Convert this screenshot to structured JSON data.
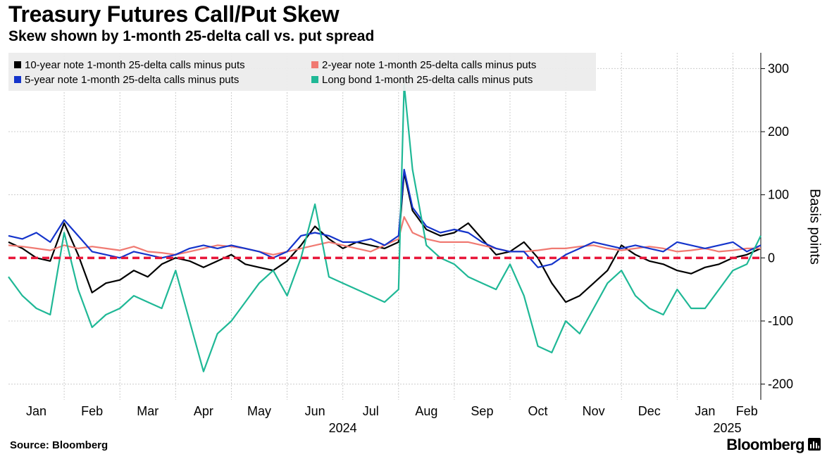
{
  "header": {
    "title": "Treasury Futures Call/Put Skew",
    "subtitle": "Skew shown by 1-month 25-delta call vs. put spread"
  },
  "footer": {
    "source": "Source: Bloomberg",
    "brand": "Bloomberg"
  },
  "chart_data": {
    "type": "line",
    "title": "Treasury Futures Call/Put Skew",
    "subtitle": "Skew shown by 1-month 25-delta call vs. put spread",
    "ylabel": "Basis points",
    "xlabel": "",
    "ylim": [
      -225,
      325
    ],
    "yticks": [
      -200,
      -100,
      0,
      100,
      200,
      300
    ],
    "ytick_labels": [
      "-200",
      "-100",
      "0",
      "100",
      "200",
      "300"
    ],
    "xlim": [
      0,
      13.5
    ],
    "x_unit": "months since start of January 2024",
    "xticks": [
      {
        "label": "Jan",
        "pos": 0.5
      },
      {
        "label": "Feb",
        "pos": 1.5
      },
      {
        "label": "Mar",
        "pos": 2.5
      },
      {
        "label": "Apr",
        "pos": 3.5
      },
      {
        "label": "May",
        "pos": 4.5
      },
      {
        "label": "Jun",
        "pos": 5.5
      },
      {
        "label": "Jul",
        "pos": 6.5
      },
      {
        "label": "Aug",
        "pos": 7.5
      },
      {
        "label": "Sep",
        "pos": 8.5
      },
      {
        "label": "Oct",
        "pos": 9.5
      },
      {
        "label": "Nov",
        "pos": 10.5
      },
      {
        "label": "Dec",
        "pos": 11.5
      },
      {
        "label": "Jan",
        "pos": 12.5
      },
      {
        "label": "Feb",
        "pos": 13.25
      }
    ],
    "year_labels": [
      {
        "label": "2024",
        "pos": 6.0
      },
      {
        "label": "2025",
        "pos": 12.9
      }
    ],
    "zero_line_color": "#e8173a",
    "grid": true,
    "legend_position": "top-left",
    "series": [
      {
        "name": "10-year note 1-month 25-delta calls minus puts",
        "color": "#000000",
        "x": [
          0,
          0.25,
          0.5,
          0.75,
          1.0,
          1.25,
          1.5,
          1.75,
          2.0,
          2.25,
          2.5,
          2.75,
          3.0,
          3.25,
          3.5,
          3.75,
          4.0,
          4.25,
          4.5,
          4.75,
          5.0,
          5.25,
          5.5,
          5.75,
          6.0,
          6.25,
          6.5,
          6.75,
          7.0,
          7.1,
          7.25,
          7.5,
          7.75,
          8.0,
          8.25,
          8.5,
          8.75,
          9.0,
          9.25,
          9.5,
          9.75,
          10.0,
          10.25,
          10.5,
          10.75,
          11.0,
          11.25,
          11.5,
          11.75,
          12.0,
          12.25,
          12.5,
          12.75,
          13.0,
          13.25,
          13.5
        ],
        "y": [
          25,
          15,
          0,
          -5,
          55,
          5,
          -55,
          -40,
          -35,
          -20,
          -30,
          -10,
          0,
          -5,
          -15,
          -5,
          5,
          -10,
          -15,
          -20,
          -5,
          20,
          50,
          30,
          15,
          25,
          20,
          15,
          25,
          135,
          75,
          45,
          35,
          40,
          55,
          30,
          5,
          10,
          25,
          0,
          -40,
          -70,
          -60,
          -40,
          -20,
          20,
          5,
          -5,
          -10,
          -20,
          -25,
          -15,
          -10,
          0,
          5,
          15
        ]
      },
      {
        "name": "2-year note 1-month 25-delta calls minus puts",
        "color": "#f07a72",
        "x": [
          0,
          0.25,
          0.5,
          0.75,
          1.0,
          1.25,
          1.5,
          1.75,
          2.0,
          2.25,
          2.5,
          2.75,
          3.0,
          3.25,
          3.5,
          3.75,
          4.0,
          4.25,
          4.5,
          4.75,
          5.0,
          5.25,
          5.5,
          5.75,
          6.0,
          6.25,
          6.5,
          6.75,
          7.0,
          7.1,
          7.25,
          7.5,
          7.75,
          8.0,
          8.25,
          8.5,
          8.75,
          9.0,
          9.25,
          9.5,
          9.75,
          10.0,
          10.25,
          10.5,
          10.75,
          11.0,
          11.25,
          11.5,
          11.75,
          12.0,
          12.25,
          12.5,
          12.75,
          13.0,
          13.25,
          13.5
        ],
        "y": [
          20,
          18,
          15,
          12,
          20,
          15,
          18,
          15,
          12,
          18,
          10,
          8,
          5,
          10,
          15,
          20,
          18,
          15,
          10,
          5,
          10,
          15,
          20,
          25,
          20,
          15,
          10,
          20,
          30,
          65,
          40,
          30,
          25,
          25,
          25,
          20,
          15,
          10,
          10,
          12,
          15,
          15,
          18,
          20,
          15,
          12,
          15,
          18,
          15,
          10,
          12,
          15,
          10,
          12,
          15,
          15
        ]
      },
      {
        "name": "5-year note 1-month 25-delta calls minus puts",
        "color": "#1434cb",
        "x": [
          0,
          0.25,
          0.5,
          0.75,
          1.0,
          1.25,
          1.5,
          1.75,
          2.0,
          2.25,
          2.5,
          2.75,
          3.0,
          3.25,
          3.5,
          3.75,
          4.0,
          4.25,
          4.5,
          4.75,
          5.0,
          5.25,
          5.5,
          5.75,
          6.0,
          6.25,
          6.5,
          6.75,
          7.0,
          7.1,
          7.25,
          7.5,
          7.75,
          8.0,
          8.25,
          8.5,
          8.75,
          9.0,
          9.25,
          9.5,
          9.75,
          10.0,
          10.25,
          10.5,
          10.75,
          11.0,
          11.25,
          11.5,
          11.75,
          12.0,
          12.25,
          12.5,
          12.75,
          13.0,
          13.25,
          13.5
        ],
        "y": [
          35,
          30,
          40,
          25,
          60,
          35,
          10,
          5,
          0,
          10,
          5,
          0,
          5,
          15,
          20,
          15,
          20,
          15,
          10,
          0,
          10,
          35,
          40,
          35,
          25,
          25,
          30,
          20,
          35,
          140,
          80,
          50,
          40,
          45,
          40,
          25,
          15,
          10,
          10,
          -15,
          -10,
          5,
          15,
          25,
          20,
          15,
          20,
          15,
          10,
          25,
          20,
          15,
          20,
          25,
          10,
          20
        ]
      },
      {
        "name": "Long bond 1-month 25-delta calls minus puts",
        "color": "#1fb896",
        "x": [
          0,
          0.25,
          0.5,
          0.75,
          1.0,
          1.25,
          1.5,
          1.75,
          2.0,
          2.25,
          2.5,
          2.75,
          3.0,
          3.25,
          3.5,
          3.75,
          4.0,
          4.25,
          4.5,
          4.75,
          5.0,
          5.25,
          5.5,
          5.75,
          6.0,
          6.25,
          6.5,
          6.75,
          7.0,
          7.1,
          7.25,
          7.5,
          7.75,
          8.0,
          8.25,
          8.5,
          8.75,
          9.0,
          9.25,
          9.5,
          9.75,
          10.0,
          10.25,
          10.5,
          10.75,
          11.0,
          11.25,
          11.5,
          11.75,
          12.0,
          12.25,
          12.5,
          12.75,
          13.0,
          13.25,
          13.5
        ],
        "y": [
          -30,
          -60,
          -80,
          -90,
          40,
          -50,
          -110,
          -90,
          -80,
          -60,
          -70,
          -80,
          -20,
          -100,
          -180,
          -120,
          -100,
          -70,
          -40,
          -20,
          -60,
          0,
          85,
          -30,
          -40,
          -50,
          -60,
          -70,
          -50,
          275,
          140,
          20,
          0,
          -10,
          -30,
          -40,
          -50,
          -10,
          -60,
          -140,
          -150,
          -100,
          -120,
          -80,
          -40,
          -20,
          -60,
          -80,
          -90,
          -50,
          -80,
          -80,
          -50,
          -20,
          -10,
          35
        ]
      }
    ]
  }
}
